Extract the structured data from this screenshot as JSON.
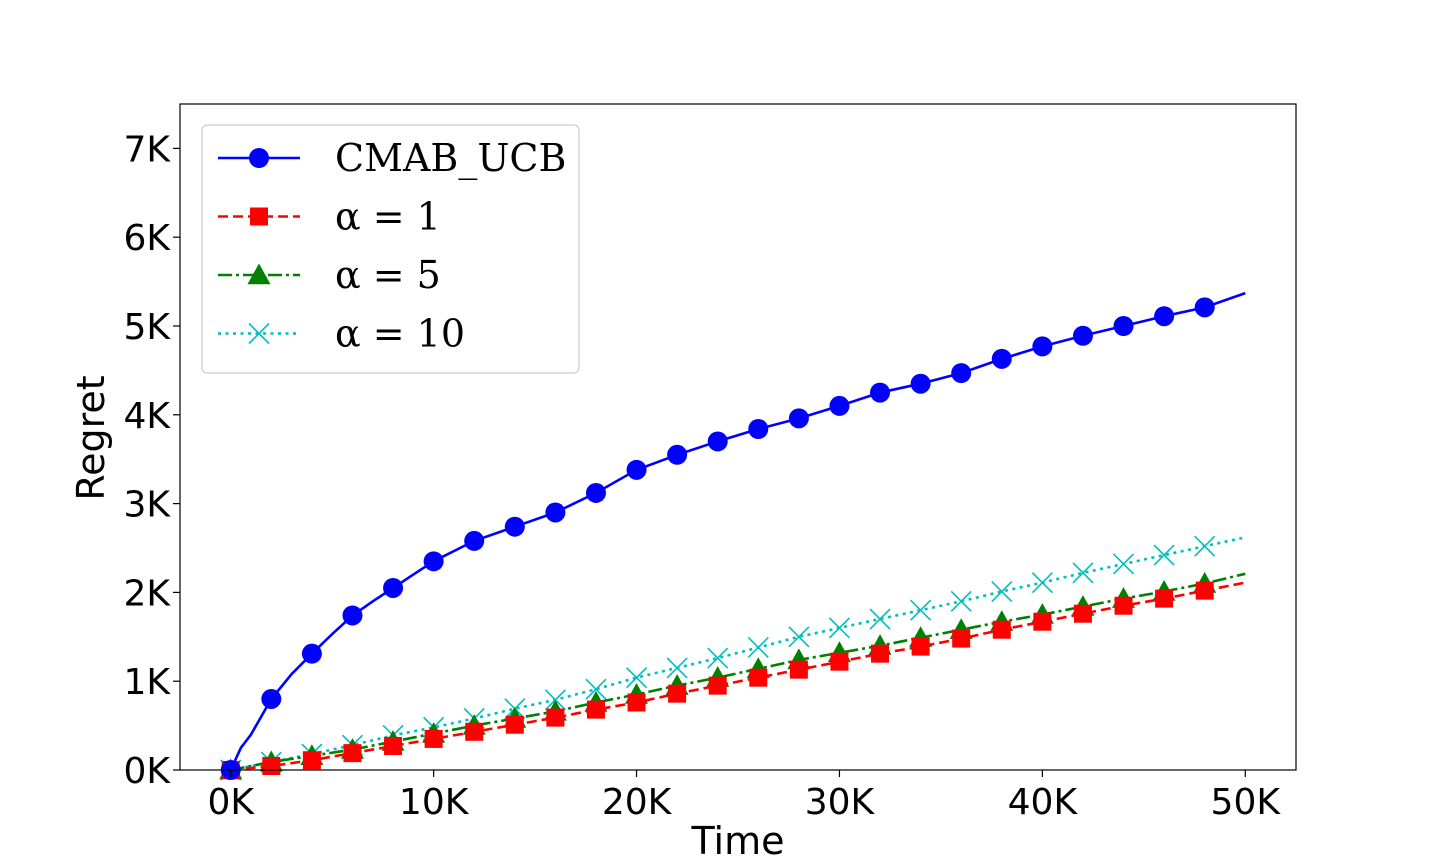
{
  "chart_data": {
    "type": "line",
    "title": "",
    "xlabel": "Time",
    "ylabel": "Regret",
    "xlim": [
      -2500,
      52500
    ],
    "ylim": [
      0,
      7500
    ],
    "xticks": [
      0,
      10000,
      20000,
      30000,
      40000,
      50000
    ],
    "xtick_labels": [
      "0K",
      "10K",
      "20K",
      "30K",
      "40K",
      "50K"
    ],
    "yticks": [
      0,
      1000,
      2000,
      3000,
      4000,
      5000,
      6000,
      7000
    ],
    "ytick_labels": [
      "0K",
      "1K",
      "2K",
      "3K",
      "4K",
      "5K",
      "6K",
      "7K"
    ],
    "grid": false,
    "legend_position": "top-left",
    "series": [
      {
        "name": "CMAB_UCB",
        "color": "#0000ff",
        "linestyle": "solid",
        "marker": "circle",
        "x": [
          0,
          500,
          1000,
          2000,
          3000,
          4000,
          5000,
          6000,
          7000,
          8000,
          9000,
          10000,
          12000,
          14000,
          16000,
          18000,
          20000,
          22000,
          24000,
          26000,
          28000,
          30000,
          32000,
          34000,
          36000,
          38000,
          40000,
          42000,
          44000,
          46000,
          48000,
          50000
        ],
        "values": [
          0,
          250,
          400,
          800,
          1080,
          1310,
          1530,
          1740,
          1900,
          2050,
          2200,
          2350,
          2580,
          2740,
          2900,
          3120,
          3380,
          3550,
          3700,
          3840,
          3960,
          4100,
          4250,
          4350,
          4470,
          4630,
          4770,
          4890,
          5000,
          5110,
          5210,
          5370
        ],
        "marker_x": [
          0,
          2000,
          4000,
          6000,
          8000,
          10000,
          12000,
          14000,
          16000,
          18000,
          20000,
          22000,
          24000,
          26000,
          28000,
          30000,
          32000,
          34000,
          36000,
          38000,
          40000,
          42000,
          44000,
          46000,
          48000
        ],
        "marker_values": [
          0,
          800,
          1310,
          1740,
          2050,
          2350,
          2580,
          2740,
          2900,
          3120,
          3380,
          3550,
          3700,
          3840,
          3960,
          4100,
          4250,
          4350,
          4470,
          4630,
          4770,
          4890,
          5000,
          5110,
          5210
        ]
      },
      {
        "name": "α = 1",
        "color": "#ff0000",
        "linestyle": "dashed",
        "marker": "square",
        "x": [
          0,
          2000,
          4000,
          6000,
          8000,
          10000,
          12000,
          14000,
          16000,
          18000,
          20000,
          22000,
          24000,
          26000,
          28000,
          30000,
          32000,
          34000,
          36000,
          38000,
          40000,
          42000,
          44000,
          46000,
          48000,
          50000
        ],
        "values": [
          0,
          45,
          110,
          190,
          270,
          350,
          430,
          510,
          590,
          680,
          760,
          860,
          950,
          1040,
          1130,
          1220,
          1310,
          1390,
          1480,
          1580,
          1670,
          1760,
          1850,
          1930,
          2020,
          2110
        ],
        "marker_x": [
          0,
          2000,
          4000,
          6000,
          8000,
          10000,
          12000,
          14000,
          16000,
          18000,
          20000,
          22000,
          24000,
          26000,
          28000,
          30000,
          32000,
          34000,
          36000,
          38000,
          40000,
          42000,
          44000,
          46000,
          48000
        ],
        "marker_values": [
          0,
          45,
          110,
          190,
          270,
          350,
          430,
          510,
          590,
          680,
          760,
          860,
          950,
          1040,
          1130,
          1220,
          1310,
          1390,
          1480,
          1580,
          1670,
          1760,
          1850,
          1930,
          2020
        ]
      },
      {
        "name": "α = 5",
        "color": "#008000",
        "linestyle": "dashdot",
        "marker": "triangle",
        "x": [
          0,
          2000,
          4000,
          6000,
          8000,
          10000,
          12000,
          14000,
          16000,
          18000,
          20000,
          22000,
          24000,
          26000,
          28000,
          30000,
          32000,
          34000,
          36000,
          38000,
          40000,
          42000,
          44000,
          46000,
          48000,
          50000
        ],
        "values": [
          0,
          90,
          160,
          230,
          320,
          410,
          500,
          580,
          660,
          760,
          850,
          950,
          1040,
          1140,
          1240,
          1320,
          1400,
          1490,
          1580,
          1670,
          1750,
          1840,
          1930,
          2010,
          2100,
          2210
        ],
        "marker_x": [
          0,
          2000,
          4000,
          6000,
          8000,
          10000,
          12000,
          14000,
          16000,
          18000,
          20000,
          22000,
          24000,
          26000,
          28000,
          30000,
          32000,
          34000,
          36000,
          38000,
          40000,
          42000,
          44000,
          46000,
          48000
        ],
        "marker_values": [
          0,
          90,
          160,
          230,
          320,
          410,
          500,
          580,
          660,
          760,
          850,
          950,
          1040,
          1140,
          1240,
          1320,
          1400,
          1490,
          1580,
          1670,
          1750,
          1840,
          1930,
          2010,
          2100
        ]
      },
      {
        "name": "α = 10",
        "color": "#00bfbf",
        "linestyle": "dotted",
        "marker": "x",
        "x": [
          0,
          2000,
          4000,
          6000,
          8000,
          10000,
          12000,
          14000,
          16000,
          18000,
          20000,
          22000,
          24000,
          26000,
          28000,
          30000,
          32000,
          34000,
          36000,
          38000,
          40000,
          42000,
          44000,
          46000,
          48000,
          50000
        ],
        "values": [
          0,
          90,
          180,
          280,
          390,
          480,
          580,
          690,
          790,
          910,
          1040,
          1150,
          1260,
          1380,
          1500,
          1600,
          1700,
          1800,
          1900,
          2010,
          2110,
          2220,
          2320,
          2420,
          2520,
          2620
        ],
        "marker_x": [
          0,
          2000,
          4000,
          6000,
          8000,
          10000,
          12000,
          14000,
          16000,
          18000,
          20000,
          22000,
          24000,
          26000,
          28000,
          30000,
          32000,
          34000,
          36000,
          38000,
          40000,
          42000,
          44000,
          46000,
          48000
        ],
        "marker_values": [
          0,
          90,
          180,
          280,
          390,
          480,
          580,
          690,
          790,
          910,
          1040,
          1150,
          1260,
          1380,
          1500,
          1600,
          1700,
          1800,
          1900,
          2010,
          2110,
          2220,
          2320,
          2420,
          2520
        ]
      }
    ]
  }
}
